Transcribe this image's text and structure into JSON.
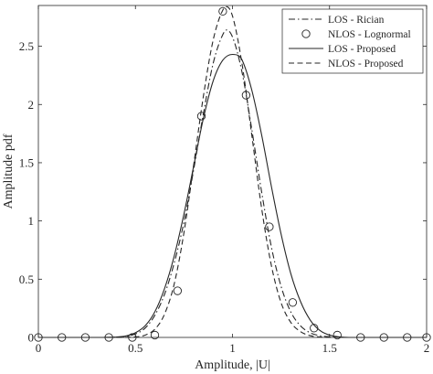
{
  "chart_data": {
    "type": "line",
    "title": "",
    "xlabel": "Amplitude, |U|",
    "ylabel": "Amplitude pdf",
    "xlim": [
      0,
      2
    ],
    "ylim": [
      0,
      2.85
    ],
    "xticks": [
      0,
      0.5,
      1,
      1.5,
      2
    ],
    "xtick_labels": [
      "0",
      "0.5",
      "1",
      "1.5",
      "2"
    ],
    "yticks": [
      0,
      0.5,
      1,
      1.5,
      2,
      2.5
    ],
    "ytick_labels": [
      "0",
      "0.5",
      "1",
      "1.5",
      "2",
      "2.5"
    ],
    "grid": false,
    "legend_position": "top-right",
    "series": [
      {
        "name": "LOS - Rician",
        "style": "dashdot",
        "color": "#262626",
        "x": [
          0,
          0.1,
          0.2,
          0.3,
          0.4,
          0.45,
          0.5,
          0.55,
          0.6,
          0.65,
          0.7,
          0.75,
          0.8,
          0.85,
          0.9,
          0.95,
          0.97,
          1.0,
          1.05,
          1.1,
          1.15,
          1.2,
          1.25,
          1.3,
          1.35,
          1.4,
          1.45,
          1.5,
          1.6,
          1.7,
          1.8,
          1.9,
          2.0
        ],
        "y": [
          0,
          0,
          0,
          0,
          0.002,
          0.008,
          0.03,
          0.08,
          0.19,
          0.37,
          0.64,
          0.99,
          1.44,
          1.92,
          2.35,
          2.6,
          2.64,
          2.58,
          2.27,
          1.78,
          1.25,
          0.78,
          0.44,
          0.22,
          0.1,
          0.04,
          0.015,
          0.005,
          0,
          0,
          0,
          0,
          0
        ]
      },
      {
        "name": "NLOS - Lognormal",
        "style": "markers",
        "marker": "circle",
        "color": "#262626",
        "x": [
          0,
          0.121,
          0.242,
          0.363,
          0.484,
          0.6,
          0.717,
          0.84,
          0.95,
          1.07,
          1.19,
          1.31,
          1.42,
          1.54,
          1.66,
          1.78,
          1.9,
          2.0
        ],
        "y": [
          0,
          0,
          0,
          0,
          0,
          0.02,
          0.4,
          1.9,
          2.8,
          2.08,
          0.95,
          0.3,
          0.08,
          0.02,
          0,
          0,
          0,
          0
        ]
      },
      {
        "name": "LOS - Proposed",
        "style": "solid",
        "color": "#262626",
        "x": [
          0,
          0.1,
          0.2,
          0.3,
          0.4,
          0.45,
          0.5,
          0.55,
          0.6,
          0.65,
          0.7,
          0.75,
          0.8,
          0.85,
          0.9,
          0.95,
          1.0,
          1.03,
          1.05,
          1.1,
          1.15,
          1.2,
          1.25,
          1.3,
          1.35,
          1.4,
          1.45,
          1.5,
          1.6,
          1.7,
          1.8,
          1.9,
          2.0
        ],
        "y": [
          0,
          0,
          0,
          0,
          0.003,
          0.012,
          0.04,
          0.1,
          0.22,
          0.42,
          0.7,
          1.06,
          1.47,
          1.88,
          2.2,
          2.38,
          2.43,
          2.42,
          2.38,
          2.12,
          1.74,
          1.3,
          0.89,
          0.55,
          0.31,
          0.15,
          0.06,
          0.02,
          0,
          0,
          0,
          0,
          0
        ]
      },
      {
        "name": "NLOS - Proposed",
        "style": "dashed",
        "color": "#262626",
        "x": [
          0,
          0.1,
          0.2,
          0.3,
          0.4,
          0.5,
          0.55,
          0.6,
          0.65,
          0.7,
          0.75,
          0.8,
          0.85,
          0.9,
          0.95,
          0.97,
          1.0,
          1.05,
          1.1,
          1.15,
          1.2,
          1.25,
          1.3,
          1.35,
          1.4,
          1.45,
          1.5,
          1.6,
          1.7,
          1.8,
          1.9,
          2.0
        ],
        "y": [
          0,
          0,
          0,
          0,
          0,
          0.004,
          0.02,
          0.07,
          0.2,
          0.46,
          0.9,
          1.48,
          2.07,
          2.55,
          2.81,
          2.84,
          2.76,
          2.34,
          1.73,
          1.11,
          0.62,
          0.3,
          0.13,
          0.05,
          0.015,
          0.004,
          0,
          0,
          0,
          0,
          0,
          0
        ]
      }
    ]
  }
}
